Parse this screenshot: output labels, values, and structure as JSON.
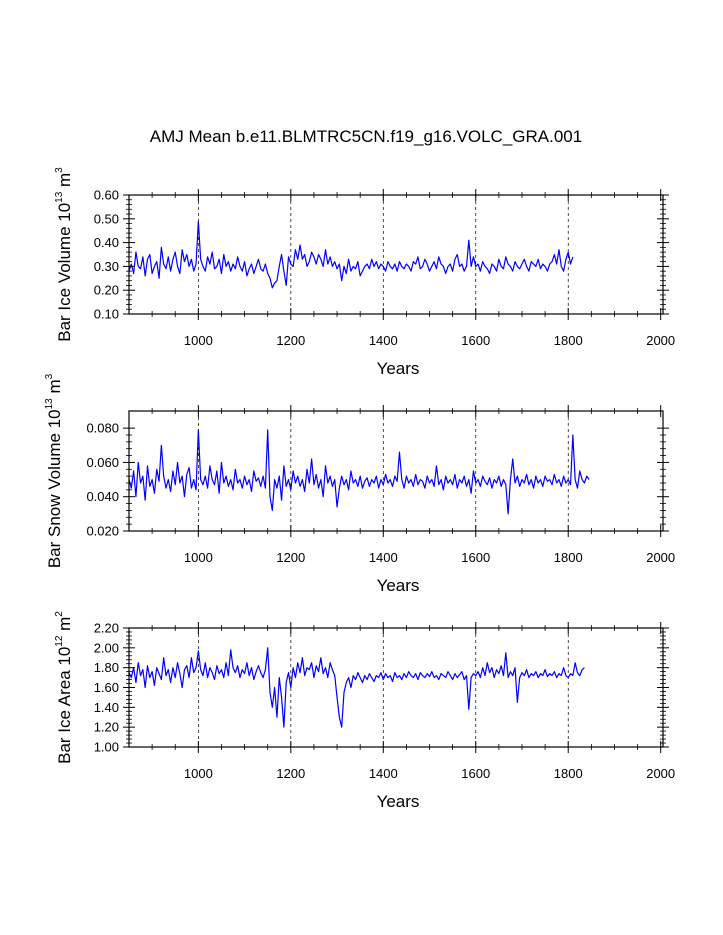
{
  "title": "AMJ Mean b.e11.BLMTRC5CN.f19_g16.VOLC_GRA.001",
  "series_color": "#0000ff",
  "chart_data": [
    {
      "type": "line",
      "title": "AMJ Mean b.e11.BLMTRC5CN.f19_g16.VOLC_GRA.001",
      "xlabel": "Years",
      "ylabel": "Bar Ice Volume 10",
      "ylabel_exp": "13",
      "ylabel_unit": " m",
      "ylabel_unit_exp": "3",
      "xlim": [
        850,
        2005
      ],
      "ylim": [
        0.1,
        0.6
      ],
      "xticks": [
        1000,
        1200,
        1400,
        1600,
        1800,
        2000
      ],
      "xtick_labels": [
        "1000",
        "1200",
        "1400",
        "1600",
        "1800",
        "2000"
      ],
      "yticks": [
        0.1,
        0.2,
        0.3,
        0.4,
        0.5,
        0.6
      ],
      "ytick_labels": [
        "0.10",
        "0.20",
        "0.30",
        "0.40",
        "0.50",
        "0.60"
      ],
      "grid_x": [
        1000,
        1200,
        1400,
        1600,
        1800
      ],
      "series": [
        {
          "name": "Bar Ice Volume",
          "x_start": 850,
          "x_step": 5,
          "values": [
            0.28,
            0.31,
            0.27,
            0.36,
            0.3,
            0.29,
            0.34,
            0.26,
            0.33,
            0.35,
            0.27,
            0.3,
            0.32,
            0.25,
            0.38,
            0.31,
            0.29,
            0.34,
            0.28,
            0.33,
            0.36,
            0.3,
            0.27,
            0.37,
            0.32,
            0.35,
            0.3,
            0.33,
            0.28,
            0.31,
            0.49,
            0.33,
            0.3,
            0.28,
            0.34,
            0.31,
            0.36,
            0.29,
            0.3,
            0.33,
            0.27,
            0.35,
            0.3,
            0.32,
            0.28,
            0.31,
            0.29,
            0.34,
            0.3,
            0.28,
            0.32,
            0.26,
            0.29,
            0.31,
            0.27,
            0.3,
            0.33,
            0.29,
            0.28,
            0.31,
            0.27,
            0.25,
            0.21,
            0.23,
            0.24,
            0.3,
            0.35,
            0.28,
            0.22,
            0.34,
            0.31,
            0.3,
            0.37,
            0.33,
            0.39,
            0.33,
            0.35,
            0.3,
            0.32,
            0.36,
            0.34,
            0.31,
            0.35,
            0.33,
            0.3,
            0.37,
            0.31,
            0.34,
            0.3,
            0.32,
            0.29,
            0.31,
            0.24,
            0.3,
            0.27,
            0.33,
            0.28,
            0.3,
            0.29,
            0.32,
            0.26,
            0.28,
            0.3,
            0.31,
            0.29,
            0.33,
            0.3,
            0.32,
            0.29,
            0.31,
            0.3,
            0.28,
            0.32,
            0.3,
            0.29,
            0.31,
            0.28,
            0.32,
            0.3,
            0.29,
            0.31,
            0.3,
            0.28,
            0.32,
            0.31,
            0.34,
            0.29,
            0.3,
            0.33,
            0.31,
            0.28,
            0.3,
            0.32,
            0.29,
            0.34,
            0.31,
            0.3,
            0.27,
            0.3,
            0.31,
            0.28,
            0.33,
            0.35,
            0.3,
            0.31,
            0.28,
            0.3,
            0.41,
            0.3,
            0.34,
            0.3,
            0.31,
            0.28,
            0.32,
            0.3,
            0.29,
            0.27,
            0.31,
            0.3,
            0.28,
            0.33,
            0.3,
            0.29,
            0.34,
            0.31,
            0.3,
            0.28,
            0.32,
            0.3,
            0.29,
            0.31,
            0.33,
            0.3,
            0.28,
            0.32,
            0.31,
            0.3,
            0.33,
            0.29,
            0.31,
            0.3,
            0.28,
            0.31,
            0.32,
            0.35,
            0.31,
            0.37,
            0.3,
            0.28,
            0.33,
            0.36,
            0.31,
            0.34
          ]
        }
      ]
    },
    {
      "type": "line",
      "xlabel": "Years",
      "ylabel": "Bar Snow Volume 10",
      "ylabel_exp": "13",
      "ylabel_unit": " m",
      "ylabel_unit_exp": "3",
      "xlim": [
        850,
        2005
      ],
      "ylim": [
        0.02,
        0.09
      ],
      "xticks": [
        1000,
        1200,
        1400,
        1600,
        1800,
        2000
      ],
      "xtick_labels": [
        "1000",
        "1200",
        "1400",
        "1600",
        "1800",
        "2000"
      ],
      "yticks": [
        0.02,
        0.04,
        0.06,
        0.08
      ],
      "ytick_labels": [
        "0.020",
        "0.040",
        "0.060",
        "0.080"
      ],
      "grid_x": [
        1000,
        1200,
        1400,
        1600,
        1800
      ],
      "series": [
        {
          "name": "Bar Snow Volume",
          "x_start": 850,
          "x_step": 5,
          "values": [
            0.05,
            0.045,
            0.055,
            0.04,
            0.06,
            0.048,
            0.052,
            0.038,
            0.058,
            0.046,
            0.05,
            0.042,
            0.056,
            0.049,
            0.07,
            0.052,
            0.045,
            0.05,
            0.043,
            0.055,
            0.047,
            0.06,
            0.048,
            0.052,
            0.04,
            0.053,
            0.057,
            0.045,
            0.05,
            0.044,
            0.079,
            0.05,
            0.047,
            0.052,
            0.045,
            0.058,
            0.05,
            0.047,
            0.055,
            0.042,
            0.06,
            0.048,
            0.052,
            0.046,
            0.05,
            0.044,
            0.056,
            0.048,
            0.05,
            0.045,
            0.052,
            0.047,
            0.05,
            0.043,
            0.055,
            0.049,
            0.051,
            0.046,
            0.052,
            0.045,
            0.079,
            0.04,
            0.032,
            0.05,
            0.045,
            0.052,
            0.038,
            0.058,
            0.046,
            0.05,
            0.044,
            0.055,
            0.048,
            0.052,
            0.046,
            0.05,
            0.043,
            0.056,
            0.048,
            0.062,
            0.047,
            0.053,
            0.045,
            0.05,
            0.04,
            0.058,
            0.048,
            0.052,
            0.046,
            0.05,
            0.034,
            0.045,
            0.052,
            0.047,
            0.05,
            0.044,
            0.055,
            0.048,
            0.05,
            0.046,
            0.052,
            0.045,
            0.049,
            0.051,
            0.046,
            0.05,
            0.048,
            0.052,
            0.045,
            0.05,
            0.047,
            0.053,
            0.048,
            0.05,
            0.046,
            0.052,
            0.049,
            0.066,
            0.05,
            0.045,
            0.052,
            0.048,
            0.05,
            0.046,
            0.053,
            0.047,
            0.05,
            0.049,
            0.045,
            0.052,
            0.048,
            0.05,
            0.046,
            0.058,
            0.047,
            0.05,
            0.044,
            0.052,
            0.048,
            0.05,
            0.047,
            0.053,
            0.045,
            0.05,
            0.048,
            0.052,
            0.046,
            0.05,
            0.042,
            0.055,
            0.048,
            0.05,
            0.046,
            0.052,
            0.049,
            0.047,
            0.051,
            0.045,
            0.05,
            0.048,
            0.052,
            0.046,
            0.05,
            0.047,
            0.03,
            0.05,
            0.062,
            0.048,
            0.052,
            0.046,
            0.05,
            0.048,
            0.053,
            0.047,
            0.05,
            0.045,
            0.052,
            0.048,
            0.05,
            0.046,
            0.052,
            0.049,
            0.05,
            0.047,
            0.053,
            0.048,
            0.05,
            0.046,
            0.052,
            0.048,
            0.05,
            0.047,
            0.076,
            0.05,
            0.045,
            0.055,
            0.05,
            0.048,
            0.052,
            0.05
          ]
        }
      ]
    },
    {
      "type": "line",
      "xlabel": "Years",
      "ylabel": "Bar Ice Area 10",
      "ylabel_exp": "12",
      "ylabel_unit": " m",
      "ylabel_unit_exp": "2",
      "xlim": [
        850,
        2005
      ],
      "ylim": [
        1.0,
        2.2
      ],
      "xticks": [
        1000,
        1200,
        1400,
        1600,
        1800,
        2000
      ],
      "xtick_labels": [
        "1000",
        "1200",
        "1400",
        "1600",
        "1800",
        "2000"
      ],
      "yticks": [
        1.0,
        1.2,
        1.4,
        1.6,
        1.8,
        2.0,
        2.2
      ],
      "ytick_labels": [
        "1.00",
        "1.20",
        "1.40",
        "1.60",
        "1.80",
        "2.00",
        "2.20"
      ],
      "grid_x": [
        1000,
        1200,
        1400,
        1600,
        1800
      ],
      "series": [
        {
          "name": "Bar Ice Area",
          "x_start": 850,
          "x_step": 5,
          "values": [
            1.75,
            1.7,
            1.8,
            1.65,
            1.85,
            1.72,
            1.78,
            1.6,
            1.82,
            1.7,
            1.76,
            1.62,
            1.8,
            1.74,
            1.68,
            1.9,
            1.72,
            1.78,
            1.65,
            1.8,
            1.7,
            1.85,
            1.74,
            1.6,
            1.78,
            1.82,
            1.7,
            1.9,
            1.75,
            1.8,
            1.97,
            1.78,
            1.72,
            1.85,
            1.7,
            1.8,
            1.75,
            1.68,
            1.82,
            1.74,
            1.78,
            1.7,
            1.85,
            1.72,
            1.98,
            1.8,
            1.75,
            1.82,
            1.7,
            1.78,
            1.74,
            1.85,
            1.72,
            1.8,
            1.68,
            1.76,
            1.82,
            1.75,
            1.7,
            1.78,
            2.0,
            1.55,
            1.4,
            1.6,
            1.3,
            1.7,
            1.5,
            1.2,
            1.65,
            1.75,
            1.6,
            1.8,
            1.7,
            1.85,
            1.75,
            1.9,
            1.72,
            1.8,
            1.78,
            1.85,
            1.7,
            1.82,
            1.76,
            1.9,
            1.74,
            1.8,
            1.7,
            1.85,
            1.78,
            1.72,
            1.5,
            1.3,
            1.2,
            1.55,
            1.65,
            1.7,
            1.6,
            1.72,
            1.68,
            1.75,
            1.7,
            1.65,
            1.72,
            1.68,
            1.74,
            1.7,
            1.66,
            1.72,
            1.7,
            1.75,
            1.68,
            1.74,
            1.7,
            1.72,
            1.66,
            1.75,
            1.7,
            1.72,
            1.68,
            1.74,
            1.7,
            1.76,
            1.72,
            1.7,
            1.74,
            1.68,
            1.75,
            1.72,
            1.7,
            1.74,
            1.71,
            1.76,
            1.7,
            1.72,
            1.68,
            1.74,
            1.72,
            1.7,
            1.76,
            1.72,
            1.68,
            1.74,
            1.7,
            1.73,
            1.76,
            1.68,
            1.72,
            1.38,
            1.7,
            1.74,
            1.72,
            1.76,
            1.7,
            1.8,
            1.72,
            1.85,
            1.75,
            1.8,
            1.7,
            1.78,
            1.74,
            1.82,
            1.72,
            1.95,
            1.7,
            1.76,
            1.72,
            1.8,
            1.45,
            1.7,
            1.75,
            1.72,
            1.78,
            1.7,
            1.74,
            1.72,
            1.76,
            1.7,
            1.74,
            1.72,
            1.78,
            1.71,
            1.74,
            1.72,
            1.76,
            1.7,
            1.74,
            1.72,
            1.8,
            1.72,
            1.7,
            1.74,
            1.72,
            1.85,
            1.75,
            1.72,
            1.78,
            1.8
          ]
        }
      ]
    }
  ]
}
